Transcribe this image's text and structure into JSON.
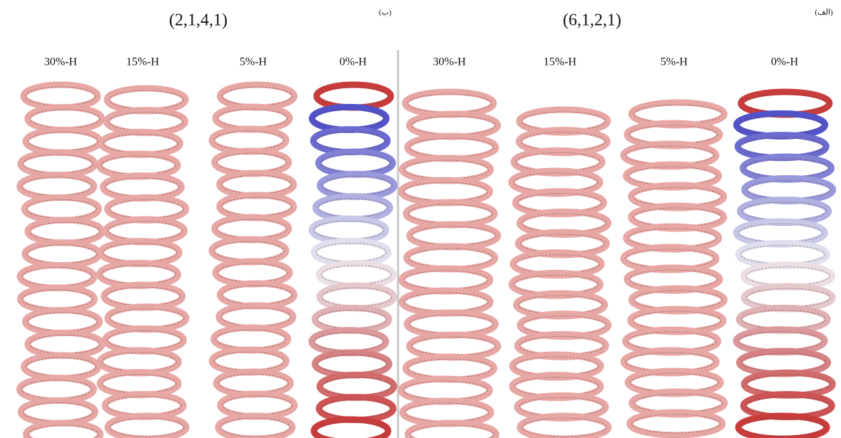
{
  "panels": [
    {
      "title": "(2,1,4,1)",
      "tag": "(ب)",
      "labels": [
        "30%-H",
        "15%-H",
        "5%-H",
        "0%-H"
      ]
    },
    {
      "title": "(6,1,2,1)",
      "tag": "(الف)",
      "labels": [
        "30%-H",
        "15%-H",
        "5%-H",
        "0%-H"
      ]
    }
  ]
}
